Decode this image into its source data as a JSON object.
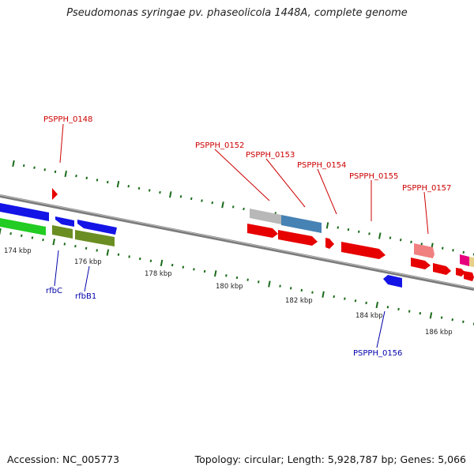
{
  "title": "Pseudomonas syringae pv. phaseolicola 1448A, complete genome",
  "footer": {
    "accession": "Accession: NC_005773",
    "summary": "Topology: circular; Length: 5,928,787 bp; Genes: 5,066"
  },
  "colors": {
    "red_label": "#cc0000",
    "blue_label": "#0000aa",
    "tick": "#1a6b1a",
    "backbone": "#888888"
  },
  "tick_labels": [
    "174 kbp",
    "176 kbp",
    "178 kbp",
    "180 kbp",
    "182 kbp",
    "184 kbp",
    "186 kbp"
  ],
  "gene_labels_top": [
    "PSPPH_0148",
    "PSPPH_0152",
    "PSPPH_0153",
    "PSPPH_0154",
    "PSPPH_0155",
    "PSPPH_0157"
  ],
  "gene_labels_bottom": [
    "rfbC",
    "rfbB1",
    "PSPPH_0156"
  ]
}
